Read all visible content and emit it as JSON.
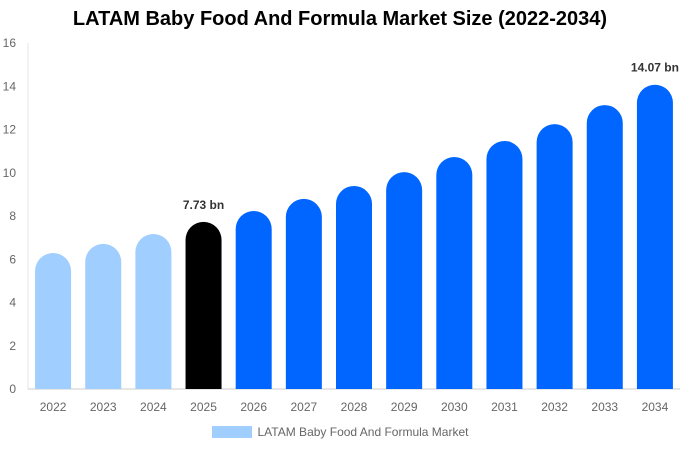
{
  "chart_data": {
    "type": "bar",
    "title": "LATAM Baby Food And Formula Market Size (2022-2034)",
    "categories": [
      "2022",
      "2023",
      "2024",
      "2025",
      "2026",
      "2027",
      "2028",
      "2029",
      "2030",
      "2031",
      "2032",
      "2033",
      "2034"
    ],
    "series": [
      {
        "name": "LATAM Baby Food And Formula Market",
        "values": [
          6.29,
          6.71,
          7.17,
          7.73,
          8.23,
          8.79,
          9.39,
          10.03,
          10.73,
          11.47,
          12.25,
          13.13,
          14.07
        ]
      }
    ],
    "data_labels": {
      "3": "7.73 bn",
      "12": "14.07 bn"
    },
    "bar_colors": [
      "#a0cfff",
      "#a0cfff",
      "#a0cfff",
      "#000000",
      "#0066ff",
      "#0066ff",
      "#0066ff",
      "#0066ff",
      "#0066ff",
      "#0066ff",
      "#0066ff",
      "#0066ff",
      "#0066ff"
    ],
    "legend_color": "#a0cfff",
    "ylim": [
      0,
      16
    ],
    "yticks": [
      0,
      2,
      4,
      6,
      8,
      10,
      12,
      14,
      16
    ],
    "xlabel": "",
    "ylabel": "",
    "grid": false,
    "legend_position": "bottom"
  }
}
